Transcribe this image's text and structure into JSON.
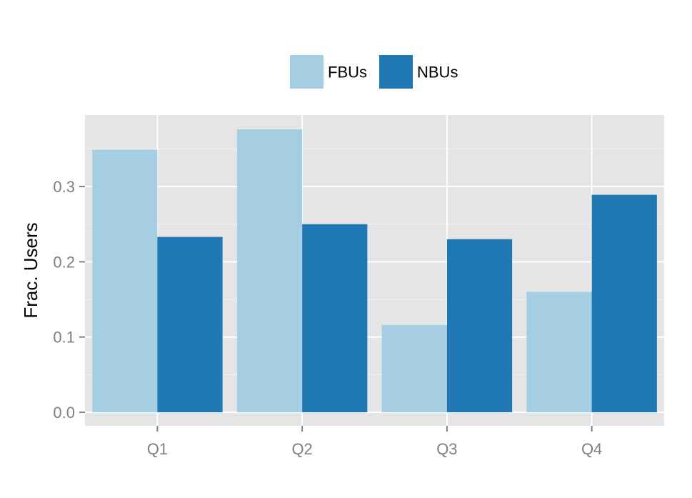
{
  "chart_data": {
    "type": "bar",
    "categories": [
      "Q1",
      "Q2",
      "Q3",
      "Q4"
    ],
    "series": [
      {
        "name": "FBUs",
        "values": [
          0.349,
          0.376,
          0.116,
          0.16
        ],
        "color": "#a6cee3"
      },
      {
        "name": "NBUs",
        "values": [
          0.233,
          0.25,
          0.23,
          0.289
        ],
        "color": "#1f78b4"
      }
    ],
    "title": "",
    "xlabel": "",
    "ylabel": "Frac. Users",
    "ylim": [
      -0.018,
      0.395
    ],
    "yticks": [
      0.0,
      0.1,
      0.2,
      0.3
    ],
    "ytick_labels": [
      "0.0",
      "0.1",
      "0.2",
      "0.3"
    ],
    "grid": true,
    "legend_position": "top-center",
    "panel_background": "#e5e5e5",
    "grid_color": "#ffffff"
  }
}
